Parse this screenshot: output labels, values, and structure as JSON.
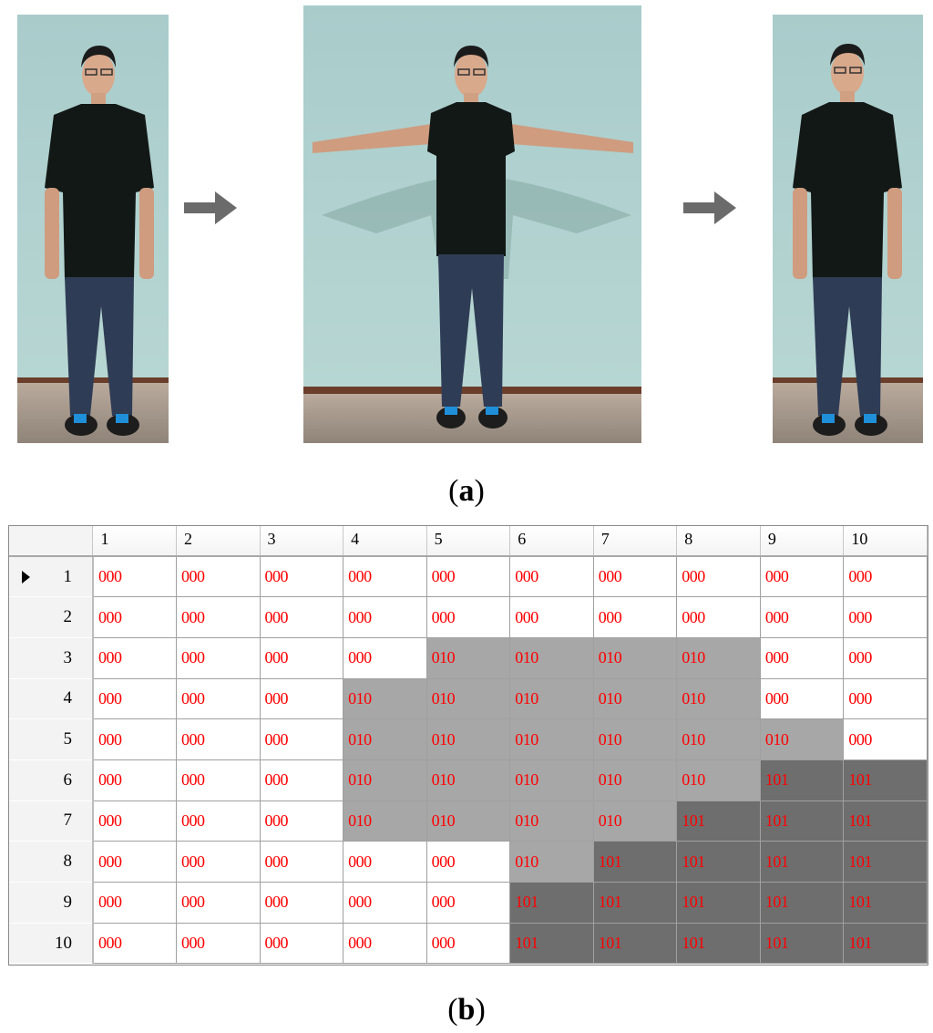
{
  "panel_a": {
    "caption_label": "a",
    "photos": [
      {
        "pose": "standing-arms-down"
      },
      {
        "pose": "arms-raised-horizontal"
      },
      {
        "pose": "standing-arms-down"
      }
    ],
    "arrow_icon": "right-arrow-icon",
    "arrow_color": "#6b6b6b"
  },
  "panel_b": {
    "caption_label": "b",
    "column_headers": [
      "1",
      "2",
      "3",
      "4",
      "5",
      "6",
      "7",
      "8",
      "9",
      "10"
    ],
    "row_headers": [
      "1",
      "2",
      "3",
      "4",
      "5",
      "6",
      "7",
      "8",
      "9",
      "10"
    ],
    "selected_row": 0,
    "cell_colors": {
      "000": "#ffffff",
      "010": "#a7a7a7",
      "101": "#6e6e6e"
    },
    "text_color": "#ff0000",
    "rows": [
      [
        "000",
        "000",
        "000",
        "000",
        "000",
        "000",
        "000",
        "000",
        "000",
        "000"
      ],
      [
        "000",
        "000",
        "000",
        "000",
        "000",
        "000",
        "000",
        "000",
        "000",
        "000"
      ],
      [
        "000",
        "000",
        "000",
        "000",
        "010",
        "010",
        "010",
        "010",
        "000",
        "000"
      ],
      [
        "000",
        "000",
        "000",
        "010",
        "010",
        "010",
        "010",
        "010",
        "000",
        "000"
      ],
      [
        "000",
        "000",
        "000",
        "010",
        "010",
        "010",
        "010",
        "010",
        "010",
        "000"
      ],
      [
        "000",
        "000",
        "000",
        "010",
        "010",
        "010",
        "010",
        "010",
        "101",
        "101"
      ],
      [
        "000",
        "000",
        "000",
        "010",
        "010",
        "010",
        "010",
        "101",
        "101",
        "101"
      ],
      [
        "000",
        "000",
        "000",
        "000",
        "000",
        "010",
        "101",
        "101",
        "101",
        "101"
      ],
      [
        "000",
        "000",
        "000",
        "000",
        "000",
        "101",
        "101",
        "101",
        "101",
        "101"
      ],
      [
        "000",
        "000",
        "000",
        "000",
        "000",
        "101",
        "101",
        "101",
        "101",
        "101"
      ]
    ]
  }
}
